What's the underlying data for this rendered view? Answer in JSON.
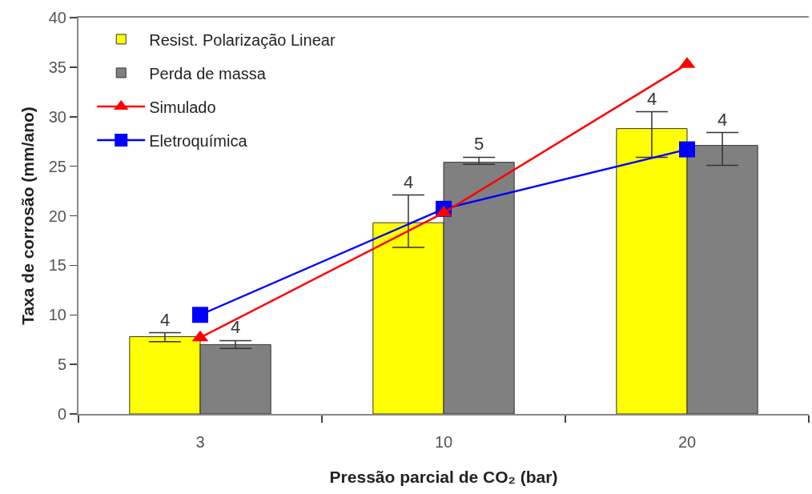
{
  "chart_data": {
    "type": "bar",
    "categories": [
      "3",
      "10",
      "20"
    ],
    "xlabel": "Pressão parcial de CO₂ (bar)",
    "ylabel": "Taxa de corrosão (mm/ano)",
    "ylim": [
      0,
      40
    ],
    "yticks": [
      0,
      5,
      10,
      15,
      20,
      25,
      30,
      35,
      40
    ],
    "legend": "top left",
    "series": [
      {
        "name": "Resist. Polarização Linear",
        "color": "#ffff00",
        "values": [
          7.8,
          19.3,
          28.8
        ],
        "errors": [
          [
            7.3,
            8.2
          ],
          [
            16.8,
            22.1
          ],
          [
            25.9,
            30.5
          ]
        ]
      },
      {
        "name": "Perda de massa",
        "color": "#808080",
        "values": [
          7.0,
          25.4,
          27.1
        ],
        "errors": [
          [
            6.6,
            7.4
          ],
          [
            25.2,
            25.9
          ],
          [
            25.1,
            28.4
          ]
        ]
      },
      {
        "name": "Simulado",
        "type": "line",
        "color": "#ff0000",
        "marker": "triangle",
        "values": [
          7.7,
          20.3,
          35.3
        ]
      },
      {
        "name": "Eletroquímica",
        "type": "line",
        "color": "#0000ff",
        "marker": "square",
        "values": [
          10.0,
          20.7,
          26.7
        ]
      }
    ],
    "annotations": [
      {
        "text": "4",
        "x": "3",
        "y": 7.8
      },
      {
        "text": "4",
        "x": "3",
        "y": 7.0
      },
      {
        "text": "4",
        "x": "10",
        "y": 19.3
      },
      {
        "text": "5",
        "x": "10",
        "y": 25.4
      },
      {
        "text": "4",
        "x": "20",
        "y": 28.8
      },
      {
        "text": "4",
        "x": "20",
        "y": 27.1
      }
    ]
  }
}
